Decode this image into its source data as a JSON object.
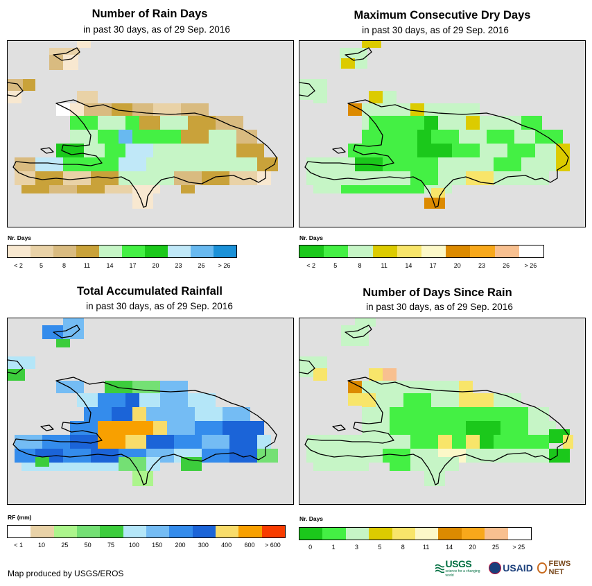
{
  "panels": [
    {
      "id": "rain_days",
      "title": "Number of Rain Days",
      "subtitle": "in past 30 days, as of 29 Sep. 2016",
      "legend_title": "Nr. Days",
      "legend_colors": [
        "#f8e8d0",
        "#e9d2a7",
        "#d9bb80",
        "#c9a23a",
        "#c6f5c6",
        "#44f044",
        "#1bc81b",
        "#c0e8f8",
        "#68b9f0",
        "#1b91d8"
      ],
      "legend_labels": [
        "< 2",
        "5",
        "8",
        "11",
        "14",
        "17",
        "20",
        "23",
        "26",
        "> 26"
      ]
    },
    {
      "id": "max_dry_days",
      "title": "Maximum Consecutive Dry Days",
      "subtitle": "in past 30 days, as of 29 Sep. 2016",
      "legend_title": "Nr. Days",
      "legend_colors": [
        "#1bc81b",
        "#44f044",
        "#c6f5c6",
        "#dccb00",
        "#f8e56a",
        "#fcf8c8",
        "#dc8a00",
        "#f8a81b",
        "#f8c090",
        "#ffffff"
      ],
      "legend_labels": [
        "< 2",
        "5",
        "8",
        "11",
        "14",
        "17",
        "20",
        "23",
        "26",
        "> 26"
      ]
    },
    {
      "id": "total_rainfall",
      "title": "Total Accumulated Rainfall",
      "subtitle": "in past 30 days, as of 29 Sep. 2016",
      "legend_title": "RF (mm)",
      "legend_colors": [
        "#ffffff",
        "#e9d2a7",
        "#acf58c",
        "#74e074",
        "#3ccd3c",
        "#b4e6f8",
        "#74bcf4",
        "#348cec",
        "#1b64d8",
        "#f8dc6a",
        "#f8a000",
        "#f83c00"
      ],
      "legend_labels": [
        "< 1",
        "10",
        "25",
        "50",
        "75",
        "100",
        "150",
        "200",
        "300",
        "400",
        "600",
        "> 600"
      ]
    },
    {
      "id": "days_since_rain",
      "title": "Number of Days Since Rain",
      "subtitle": "in past 30 days, as of 29 Sep. 2016",
      "legend_title": "Nr. Days",
      "legend_colors": [
        "#1bc81b",
        "#44f044",
        "#c6f5c6",
        "#dccb00",
        "#f8e56a",
        "#fcf8c8",
        "#dc8a00",
        "#f8a81b",
        "#f8c090",
        "#ffffff"
      ],
      "legend_labels": [
        "0",
        "1",
        "3",
        "5",
        "8",
        "11",
        "14",
        "20",
        "25",
        "> 25"
      ]
    }
  ],
  "footer": {
    "credit": "Map produced by USGS/EROS",
    "logos": {
      "usgs": "USGS",
      "usgs_tag": "science for a changing world",
      "usaid": "USAID",
      "fews": "FEWS NET"
    }
  }
}
